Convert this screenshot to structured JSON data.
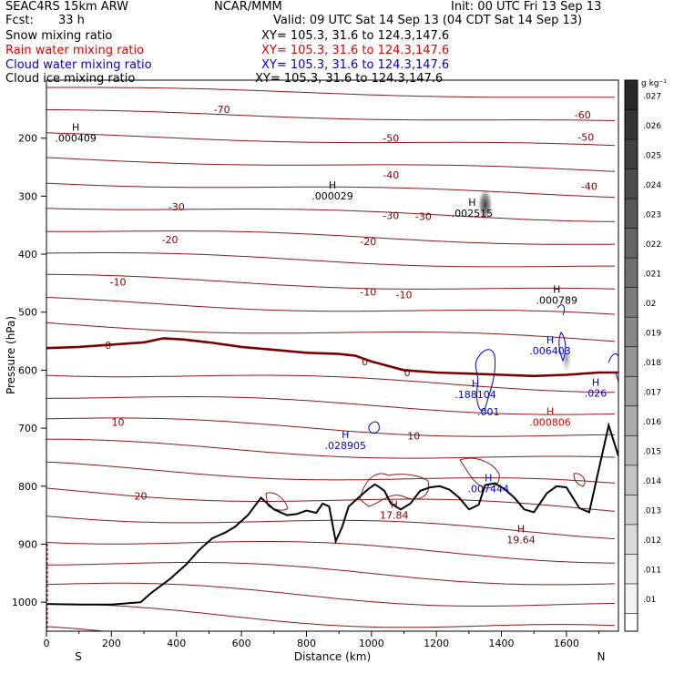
{
  "header": {
    "model": "SEAC4RS 15km ARW",
    "org": "NCAR/MMM",
    "init": "Init: 00 UTC Fri 13 Sep 13",
    "fcst_label": "Fcst:",
    "fcst_value": "33 h",
    "valid": "Valid: 09 UTC Sat 14 Sep 13 (04 CDT Sat 14 Sep 13)"
  },
  "fields": [
    {
      "name": "Snow mixing ratio",
      "xy": "XY= 105.3, 31.6 to 124.3,147.6",
      "color": "#000000"
    },
    {
      "name": "Rain water mixing ratio",
      "xy": "XY= 105.3, 31.6 to 124.3,147.6",
      "color": "#e00000"
    },
    {
      "name": "Cloud water mixing ratio",
      "xy": "XY= 105.3, 31.6 to 124.3,147.6",
      "color": "#0000d0"
    },
    {
      "name": "Cloud ice mixing ratio",
      "xy": "XY= 105.3, 31.6 to 124.3,147.6",
      "color": "#000000"
    }
  ],
  "colorbar": {
    "unit": "g kg⁻¹",
    "ticks": [
      ".027",
      ".026",
      ".025",
      ".024",
      ".023",
      ".022",
      ".021",
      ".02",
      ".019",
      ".018",
      ".017",
      ".016",
      ".015",
      ".014",
      ".013",
      ".012",
      ".011",
      ".01"
    ]
  },
  "chart_data": {
    "type": "contour cross-section",
    "xlabel": "Distance (km)",
    "ylabel": "Pressure (hPa)",
    "xlim": [
      0,
      1760
    ],
    "ylim": [
      1050,
      100
    ],
    "x_ticks": [
      "0",
      "200",
      "400",
      "600",
      "800",
      "1000",
      "1200",
      "1400",
      "1600"
    ],
    "y_ticks": [
      "200",
      "300",
      "400",
      "500",
      "600",
      "700",
      "800",
      "900",
      "1000"
    ],
    "x_end_labels": {
      "left": "S",
      "right": "N"
    },
    "isotherm_labels": [
      {
        "text": "-70",
        "x": 540,
        "p": 150
      },
      {
        "text": "-60",
        "x": 1650,
        "p": 160
      },
      {
        "text": "-50",
        "x": 1060,
        "p": 200
      },
      {
        "text": "-50",
        "x": 1660,
        "p": 198
      },
      {
        "text": "-40",
        "x": 1060,
        "p": 263
      },
      {
        "text": "-40",
        "x": 1670,
        "p": 283
      },
      {
        "text": "-30",
        "x": 400,
        "p": 318
      },
      {
        "text": "-30",
        "x": 1060,
        "p": 333
      },
      {
        "text": "-30",
        "x": 1160,
        "p": 335
      },
      {
        "text": "-20",
        "x": 380,
        "p": 375
      },
      {
        "text": "-20",
        "x": 990,
        "p": 378
      },
      {
        "text": "-10",
        "x": 220,
        "p": 448
      },
      {
        "text": "-10",
        "x": 990,
        "p": 465
      },
      {
        "text": "-10",
        "x": 1100,
        "p": 470
      },
      {
        "text": "0",
        "x": 190,
        "p": 557
      },
      {
        "text": "0",
        "x": 980,
        "p": 585
      },
      {
        "text": "0",
        "x": 1110,
        "p": 604
      },
      {
        "text": "10",
        "x": 220,
        "p": 690
      },
      {
        "text": "10",
        "x": 1130,
        "p": 713
      },
      {
        "text": "20",
        "x": 290,
        "p": 817
      }
    ],
    "maxima": [
      {
        "label": "H",
        "value": ".000409",
        "x": 90,
        "p": 190,
        "color": "#000000"
      },
      {
        "label": "H",
        "value": ".000029",
        "x": 880,
        "p": 290,
        "color": "#000000"
      },
      {
        "label": "H",
        "value": ".002515",
        "x": 1310,
        "p": 320,
        "color": "#000000"
      },
      {
        "label": "H",
        "value": ".000789",
        "x": 1570,
        "p": 470,
        "color": "#000000"
      },
      {
        "label": "H",
        "value": ".006403",
        "x": 1550,
        "p": 557,
        "color": "#0000d0"
      },
      {
        "label": "H",
        "value": ".188104",
        "x": 1320,
        "p": 632,
        "color": "#0000d0"
      },
      {
        "label": "",
        "value": ".001",
        "x": 1360,
        "p": 662,
        "color": "#0000d0"
      },
      {
        "label": "H",
        "value": ".026",
        "x": 1690,
        "p": 630,
        "color": "#0000d0"
      },
      {
        "label": "H",
        "value": ".000806",
        "x": 1550,
        "p": 680,
        "color": "#e00000"
      },
      {
        "label": "H",
        "value": ".028905",
        "x": 920,
        "p": 720,
        "color": "#0000d0"
      },
      {
        "label": "H",
        "value": ".007444",
        "x": 1360,
        "p": 795,
        "color": "#0000d0"
      },
      {
        "label": "H",
        "value": "17.84",
        "x": 1070,
        "p": 840,
        "color": "#800000"
      },
      {
        "label": "H",
        "value": "19.64",
        "x": 1460,
        "p": 883,
        "color": "#800000"
      }
    ],
    "freezing_level": {
      "x": [
        0,
        100,
        200,
        300,
        360,
        420,
        500,
        600,
        700,
        800,
        900,
        950,
        1000,
        1100,
        1200,
        1300,
        1400,
        1500,
        1600,
        1700,
        1760
      ],
      "p": [
        562,
        560,
        556,
        552,
        545,
        547,
        552,
        560,
        565,
        570,
        572,
        575,
        585,
        600,
        604,
        606,
        608,
        610,
        608,
        604,
        604
      ]
    },
    "terrain": {
      "x": [
        0,
        100,
        200,
        290,
        320,
        380,
        430,
        470,
        510,
        550,
        580,
        620,
        660,
        700,
        740,
        770,
        800,
        830,
        850,
        870,
        890,
        910,
        930,
        960,
        990,
        1010,
        1020,
        1040,
        1060,
        1090,
        1120,
        1150,
        1180,
        1210,
        1240,
        1270,
        1300,
        1330,
        1350,
        1380,
        1410,
        1440,
        1470,
        1500,
        1540,
        1570,
        1600,
        1640,
        1670,
        1700,
        1730,
        1760
      ],
      "p": [
        1003,
        1004,
        1004,
        1000,
        985,
        960,
        935,
        910,
        890,
        880,
        870,
        850,
        820,
        840,
        850,
        848,
        842,
        846,
        830,
        835,
        895,
        870,
        835,
        820,
        805,
        797,
        800,
        808,
        830,
        840,
        830,
        808,
        802,
        800,
        806,
        820,
        840,
        832,
        798,
        795,
        805,
        820,
        840,
        845,
        812,
        800,
        802,
        838,
        845,
        770,
        695,
        748
      ]
    },
    "cloud_ice_maximum": {
      "x": 1350,
      "p": 315
    },
    "cloud_water_maximum": {
      "x": 1600,
      "p": 580
    }
  }
}
